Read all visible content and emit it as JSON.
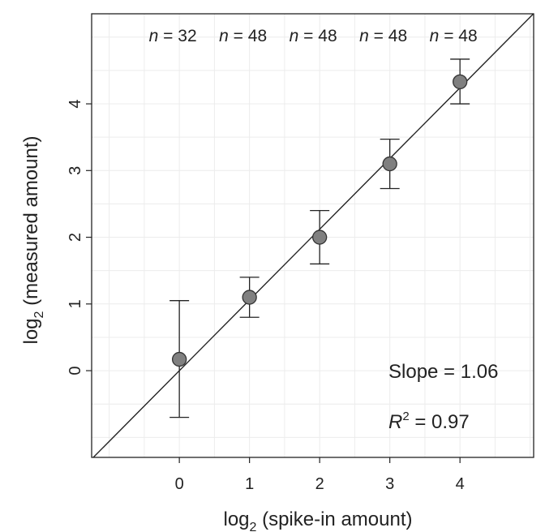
{
  "chart_data": {
    "type": "scatter",
    "xlabel": {
      "prefix": "log",
      "subscript": "2",
      "rest": " (spike-in amount)"
    },
    "ylabel": {
      "prefix": "log",
      "subscript": "2",
      "rest": " (measured amount)"
    },
    "xlim": [
      -1.25,
      5.05
    ],
    "ylim": [
      -1.3,
      5.35
    ],
    "xticks": [
      0,
      1,
      2,
      3,
      4
    ],
    "yticks": [
      0,
      1,
      2,
      3,
      4
    ],
    "grid": true,
    "series": [
      {
        "points": [
          {
            "x": 0,
            "y": 0.17,
            "err_low": -0.7,
            "err_high": 1.05,
            "n_label": "n = 32"
          },
          {
            "x": 1,
            "y": 1.1,
            "err_low": 0.8,
            "err_high": 1.4,
            "n_label": "n = 48"
          },
          {
            "x": 2,
            "y": 2.0,
            "err_low": 1.6,
            "err_high": 2.4,
            "n_label": "n = 48"
          },
          {
            "x": 3,
            "y": 3.1,
            "err_low": 2.73,
            "err_high": 3.47,
            "n_label": "n = 48"
          },
          {
            "x": 4,
            "y": 4.33,
            "err_low": 4.0,
            "err_high": 4.67,
            "n_label": "n = 48"
          }
        ]
      }
    ],
    "fit_line": {
      "slope": 1.06,
      "intercept": 0.0
    },
    "slope_text": "Slope = 1.06",
    "r2_text": {
      "symbol": "R",
      "sup": "2",
      "rest": " = 0.97"
    },
    "colors": {
      "marker_fill": "#808080",
      "marker_stroke": "#333333",
      "line": "#222222",
      "grid": "#ececec"
    }
  }
}
